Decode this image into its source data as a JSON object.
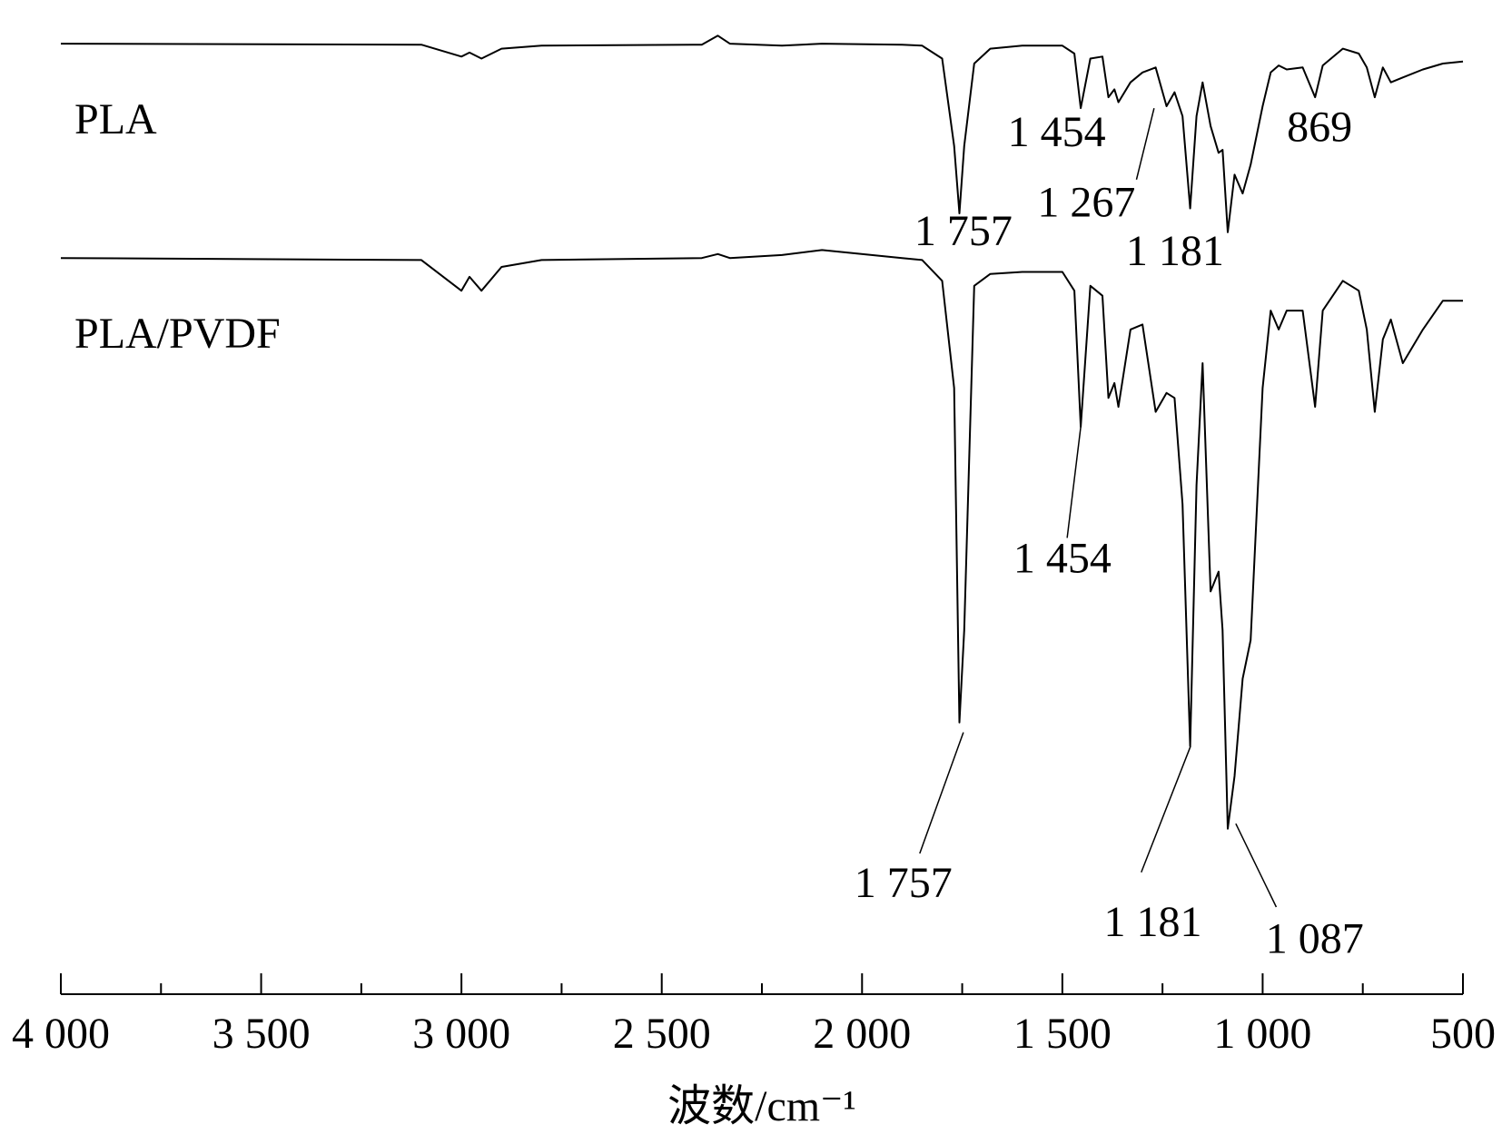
{
  "chart_data": {
    "type": "line",
    "x_label": "波数/cm⁻¹",
    "xlim": [
      4000,
      500
    ],
    "ylim": [
      0,
      100
    ],
    "xticks": [
      {
        "value": 4000,
        "label": "4 000"
      },
      {
        "value": 3500,
        "label": "3 500"
      },
      {
        "value": 3000,
        "label": "3 000"
      },
      {
        "value": 2500,
        "label": "2 500"
      },
      {
        "value": 2000,
        "label": "2 000"
      },
      {
        "value": 1500,
        "label": "1 500"
      },
      {
        "value": 1000,
        "label": "1 000"
      },
      500
    ],
    "xminor_ticks": [
      3750,
      3250,
      2750,
      2250,
      1750,
      1250,
      750
    ],
    "x": [
      4000,
      3100,
      3000,
      2980,
      2950,
      2900,
      2800,
      2400,
      2360,
      2330,
      2200,
      2100,
      1900,
      1850,
      1800,
      1770,
      1757,
      1745,
      1720,
      1680,
      1600,
      1500,
      1470,
      1454,
      1430,
      1400,
      1385,
      1370,
      1360,
      1330,
      1300,
      1267,
      1240,
      1220,
      1200,
      1181,
      1165,
      1150,
      1130,
      1110,
      1100,
      1087,
      1070,
      1050,
      1030,
      1000,
      980,
      960,
      940,
      900,
      869,
      850,
      800,
      760,
      740,
      720,
      700,
      680,
      650,
      600,
      550,
      500
    ],
    "series": [
      {
        "name": "PLA",
        "color": "#000000",
        "values": [
          95.6,
          95.5,
          94.3,
          94.7,
          94.1,
          95.1,
          95.4,
          95.5,
          96.4,
          95.6,
          95.4,
          95.6,
          95.5,
          95.4,
          94.1,
          85.3,
          78.5,
          85.3,
          93.6,
          95.1,
          95.4,
          95.4,
          94.6,
          89.1,
          94.1,
          94.3,
          90.2,
          91.0,
          89.7,
          91.7,
          92.7,
          93.2,
          89.3,
          90.7,
          88.3,
          79.0,
          88.3,
          91.7,
          87.3,
          84.6,
          84.9,
          76.6,
          82.4,
          80.5,
          83.4,
          89.3,
          92.7,
          93.4,
          93.0,
          93.2,
          90.2,
          93.4,
          95.1,
          94.6,
          93.2,
          90.2,
          93.2,
          91.7,
          92.2,
          93.0,
          93.6,
          93.8
        ]
      },
      {
        "name": "PLA/PVDF",
        "color": "#000000",
        "values": [
          74.0,
          73.8,
          70.7,
          72.1,
          70.7,
          73.1,
          73.8,
          74.0,
          74.4,
          74.0,
          74.3,
          74.8,
          74.0,
          73.8,
          71.7,
          60.9,
          27.2,
          36.5,
          71.2,
          72.4,
          72.6,
          72.6,
          70.7,
          57.0,
          71.2,
          70.2,
          59.9,
          61.4,
          59.0,
          66.8,
          67.3,
          58.5,
          60.4,
          59.9,
          49.2,
          24.8,
          51.1,
          63.4,
          40.4,
          42.4,
          36.5,
          16.5,
          21.8,
          31.6,
          35.5,
          60.9,
          68.7,
          66.8,
          68.7,
          68.7,
          59.0,
          68.7,
          71.7,
          70.7,
          66.8,
          58.5,
          65.8,
          67.8,
          63.4,
          66.8,
          69.7,
          69.7
        ]
      }
    ],
    "annotations": [
      {
        "text": "1 454",
        "x": 1514,
        "y": 86.3
      },
      {
        "text": "1 267",
        "x": 1440,
        "y": 79.2,
        "line": [
          1315,
          81.9,
          1271,
          89.1
        ]
      },
      {
        "text": "1 757",
        "x": 1747,
        "y": 76.3
      },
      {
        "text": "1 181",
        "x": 1219,
        "y": 74.3
      },
      {
        "text": "869",
        "x": 858,
        "y": 86.8
      },
      {
        "text": "1 454",
        "x": 1500,
        "y": 43.3,
        "line": [
          1488,
          45.8,
          1454,
          57.0
        ]
      },
      {
        "text": "1 757",
        "x": 1897,
        "y": 10.6,
        "line": [
          1856,
          14.0,
          1747,
          26.2
        ]
      },
      {
        "text": "1 181",
        "x": 1274,
        "y": 6.7,
        "line": [
          1303,
          12.1,
          1180,
          24.8
        ]
      },
      {
        "text": "1 087",
        "x": 870,
        "y": 5.0,
        "line": [
          966,
          8.6,
          1067,
          17.0
        ]
      }
    ]
  }
}
